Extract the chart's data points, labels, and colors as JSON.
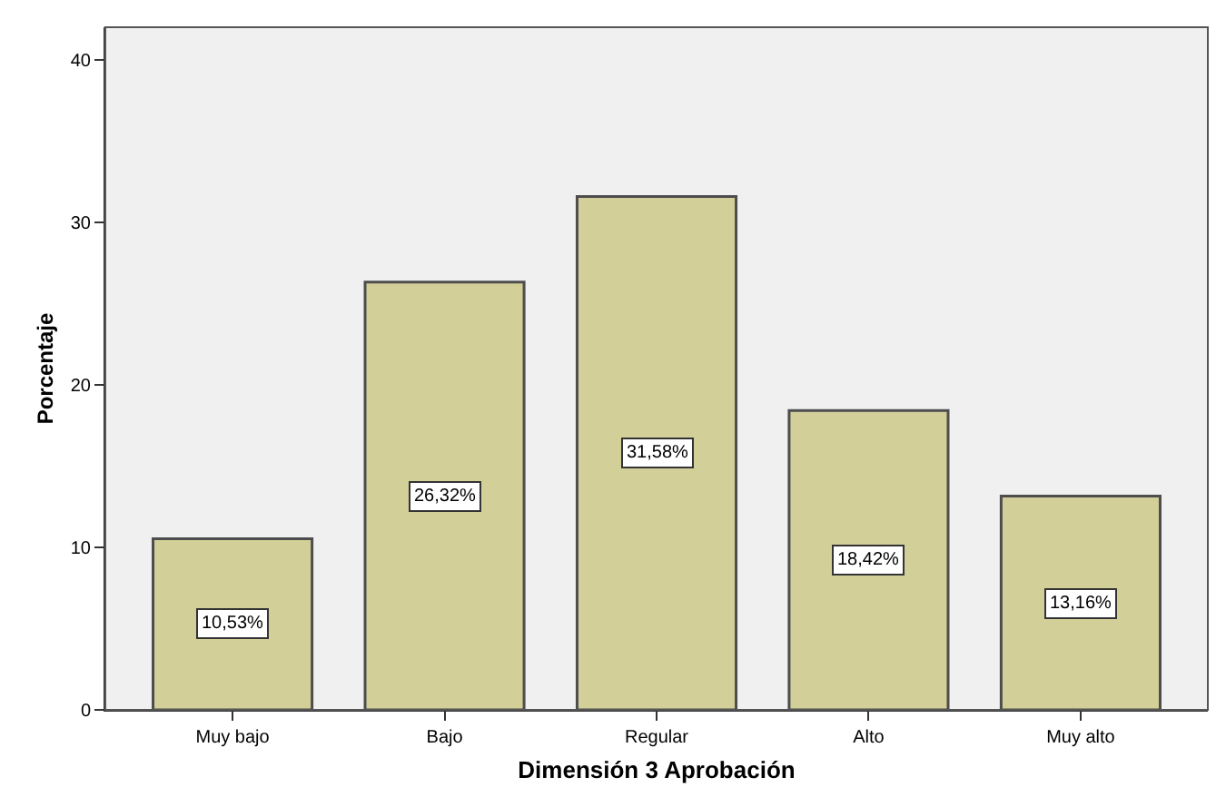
{
  "chart_data": {
    "type": "bar",
    "xlabel": "Dimensión 3 Aprobación",
    "ylabel": "Porcentaje",
    "categories": [
      "Muy bajo",
      "Bajo",
      "Regular",
      "Alto",
      "Muy alto"
    ],
    "values": [
      10.53,
      26.32,
      31.58,
      18.42,
      13.16
    ],
    "value_labels": [
      "10,53%",
      "26,32%",
      "31,58%",
      "18,42%",
      "13,16%"
    ],
    "color": "#d3cf98",
    "ylim": [
      0,
      42
    ],
    "yticks": [
      0,
      10,
      20,
      30,
      40
    ],
    "grid": false
  }
}
